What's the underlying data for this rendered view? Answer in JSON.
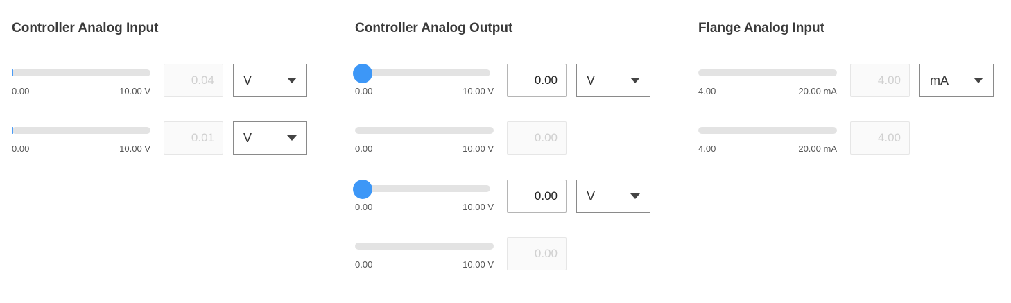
{
  "sections": [
    {
      "title": "Controller Analog Input",
      "rows": [
        {
          "min": "0.00",
          "max": "10.00 V",
          "value": "0.04",
          "level": 0.004,
          "editable": false,
          "slider": false,
          "unit": "V"
        },
        {
          "min": "0.00",
          "max": "10.00 V",
          "value": "0.01",
          "level": 0.001,
          "editable": false,
          "slider": false,
          "unit": "V"
        }
      ]
    },
    {
      "title": "Controller Analog Output",
      "rows": [
        {
          "min": "0.00",
          "max": "10.00 V",
          "value": "0.00",
          "level": 0,
          "editable": true,
          "slider": true,
          "unit": "V"
        },
        {
          "min": "0.00",
          "max": "10.00 V",
          "value": "0.00",
          "level": 0,
          "editable": false,
          "slider": false,
          "unit": null
        },
        {
          "min": "0.00",
          "max": "10.00 V",
          "value": "0.00",
          "level": 0,
          "editable": true,
          "slider": true,
          "unit": "V"
        },
        {
          "min": "0.00",
          "max": "10.00 V",
          "value": "0.00",
          "level": 0,
          "editable": false,
          "slider": false,
          "unit": null
        }
      ]
    },
    {
      "title": "Flange Analog Input",
      "rows": [
        {
          "min": "4.00",
          "max": "20.00 mA",
          "value": "4.00",
          "level": 0,
          "editable": false,
          "slider": false,
          "unit": "mA"
        },
        {
          "min": "4.00",
          "max": "20.00 mA",
          "value": "4.00",
          "level": 0,
          "editable": false,
          "slider": false,
          "unit": null
        }
      ]
    }
  ],
  "colors": {
    "accent": "#3d97f7",
    "track": "#e3e3e3"
  }
}
